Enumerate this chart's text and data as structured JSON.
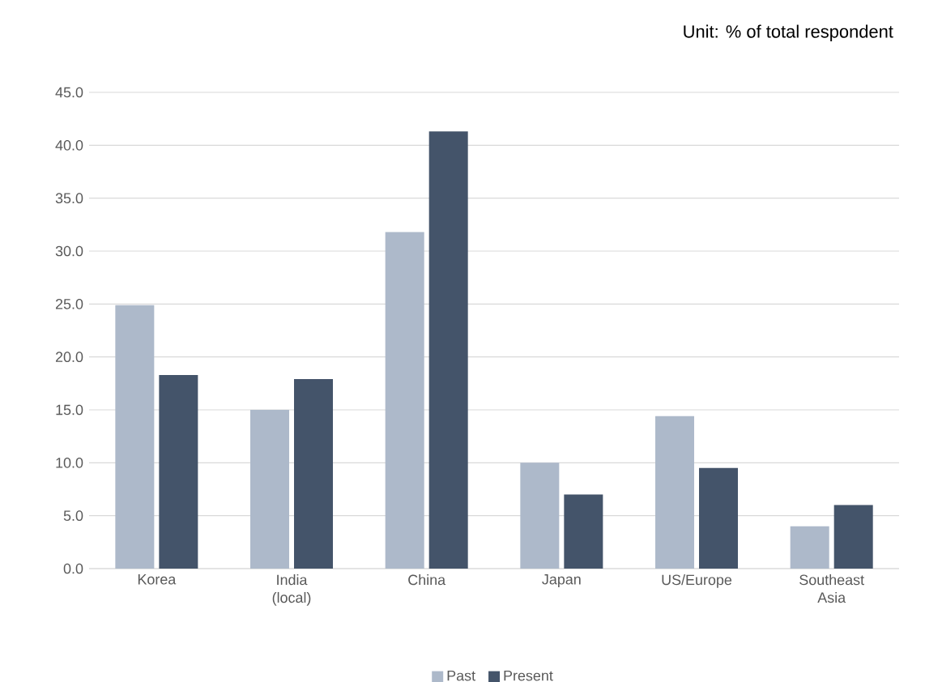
{
  "chart_data": {
    "type": "bar",
    "title": "Unit: % of total respondent",
    "categories": [
      "Korea",
      "India (local)",
      "China",
      "Japan",
      "US/Europe",
      "Southeast Asia"
    ],
    "series": [
      {
        "name": "Past",
        "color": "#adb9ca",
        "values": [
          24.9,
          15.0,
          31.8,
          10.0,
          14.4,
          4.0
        ]
      },
      {
        "name": "Present",
        "color": "#44546a",
        "values": [
          18.3,
          17.9,
          41.3,
          7.0,
          9.5,
          6.0
        ]
      }
    ],
    "ylim": [
      0,
      45
    ],
    "yticks": [
      {
        "value": 0,
        "label": "0.0"
      },
      {
        "value": 5,
        "label": "5.0"
      },
      {
        "value": 10,
        "label": "10.0"
      },
      {
        "value": 15,
        "label": "15.0"
      },
      {
        "value": 20,
        "label": "20.0"
      },
      {
        "value": 25,
        "label": "25.0"
      },
      {
        "value": 30,
        "label": "30.0"
      },
      {
        "value": 35,
        "label": "35.0"
      },
      {
        "value": 40,
        "label": "40.0"
      },
      {
        "value": 45,
        "label": "45.0"
      }
    ],
    "grid": "y",
    "legend": "bottom"
  }
}
